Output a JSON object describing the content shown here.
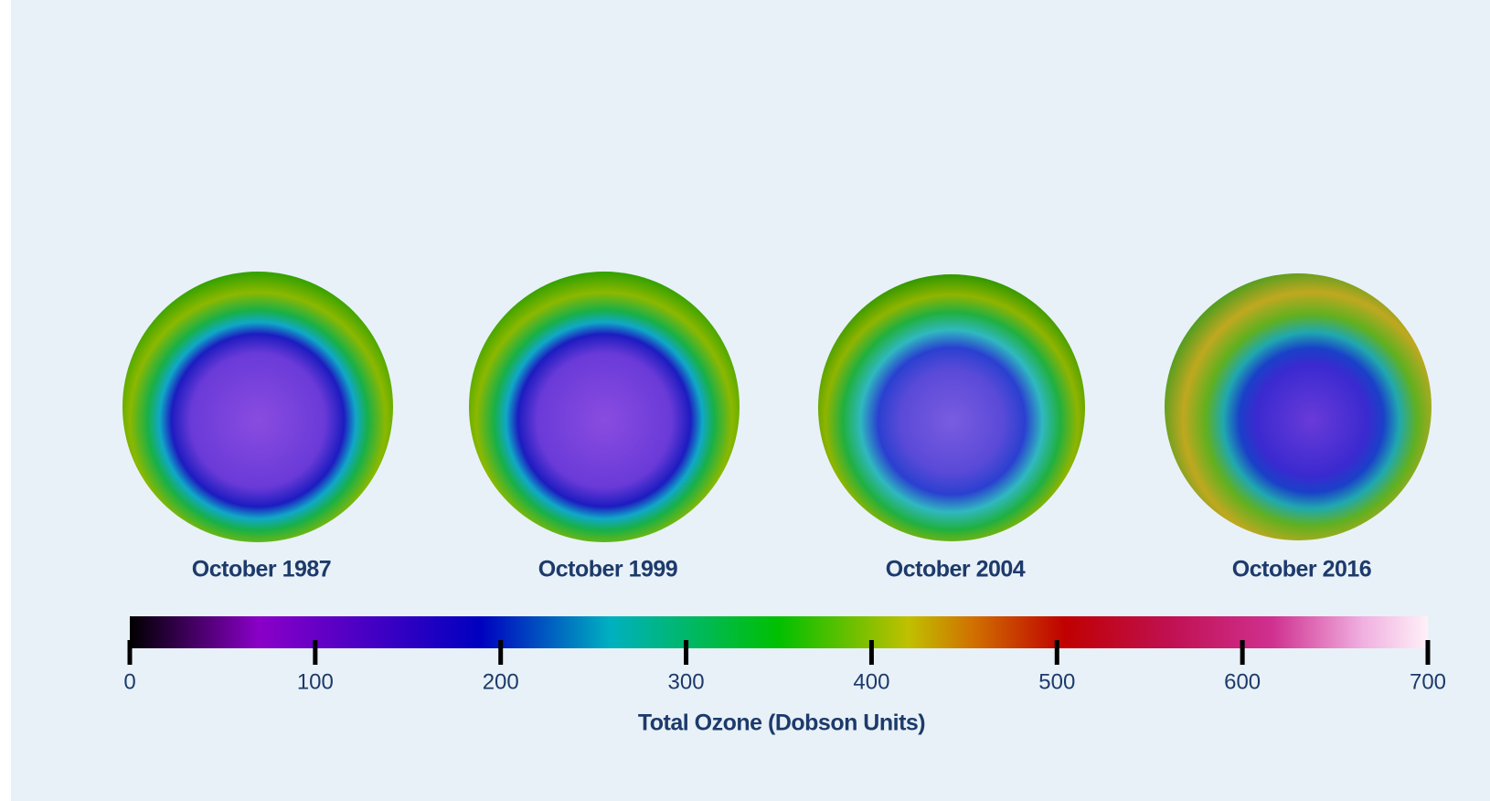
{
  "panels": [
    {
      "label": "October 1987"
    },
    {
      "label": "October 1999"
    },
    {
      "label": "October 2004"
    },
    {
      "label": "October 2016"
    }
  ],
  "colorbar": {
    "label": "Total Ozone (Dobson Units)",
    "lim": [
      0,
      700
    ],
    "ticks": [
      0,
      100,
      200,
      300,
      400,
      500,
      600,
      700
    ]
  }
}
